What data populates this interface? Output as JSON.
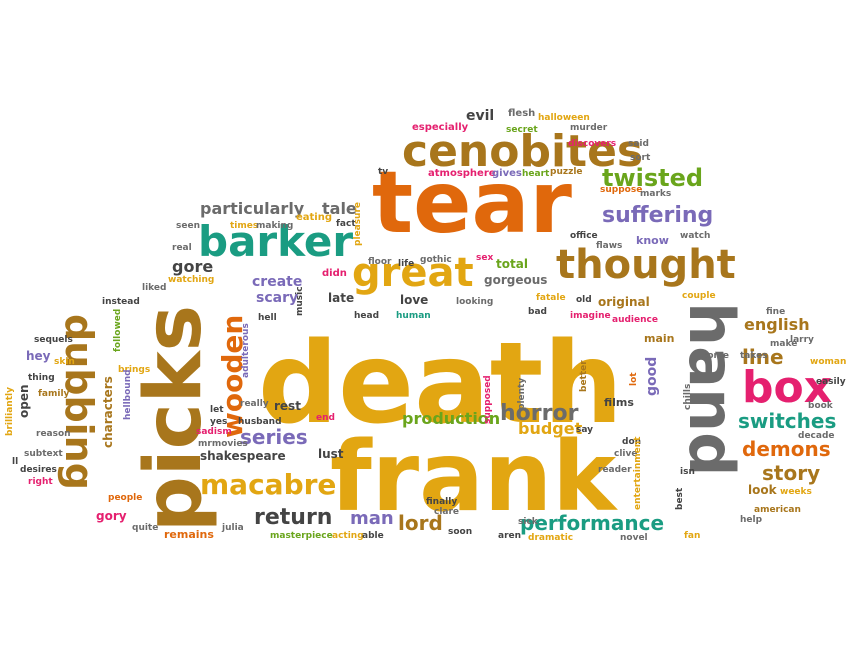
{
  "palette": {
    "gold": "#e2a612",
    "brown": "#a8761c",
    "orange": "#e0680c",
    "teal": "#1a9c82",
    "green": "#6aa51c",
    "magenta": "#e5206f",
    "purple": "#7a6ab8",
    "gray": "#6b6b6b",
    "dark": "#444444",
    "blue": "#3a86b8"
  },
  "words": [
    "death",
    "frank",
    "tear",
    "picks",
    "hand",
    "cenobites",
    "barker",
    "great",
    "thought",
    "box",
    "dubbing",
    "wooden",
    "macabre",
    "twisted",
    "suffering",
    "horror",
    "switches",
    "demons",
    "story",
    "series",
    "return",
    "performance",
    "line",
    "english",
    "lord",
    "man",
    "production",
    "budget",
    "particularly",
    "gore",
    "tale",
    "create",
    "scary",
    "evil",
    "flesh",
    "halloween",
    "especially",
    "secret",
    "murder",
    "atmosphere",
    "gives",
    "heart",
    "puzzle",
    "said",
    "sort",
    "suppose",
    "marks",
    "tv",
    "seen",
    "times",
    "making",
    "eating",
    "fact",
    "pleasure",
    "office",
    "watch",
    "know",
    "flaws",
    "real",
    "didn",
    "watching",
    "liked",
    "music",
    "sex",
    "total",
    "gorgeous",
    "late",
    "love",
    "looking",
    "fatale",
    "old",
    "original",
    "couple",
    "instead",
    "hell",
    "sequels",
    "followed",
    "hey",
    "skin",
    "brings",
    "thing",
    "brilliantly",
    "open",
    "ll",
    "subtext",
    "desires",
    "reason",
    "right",
    "family",
    "characters",
    "people",
    "gory",
    "quite",
    "julia",
    "remains",
    "masterpiece",
    "acting",
    "able",
    "aren",
    "dramatic",
    "sick",
    "better",
    "soon",
    "clive",
    "clare",
    "finally",
    "say",
    "reader",
    "don",
    "films",
    "entertainment",
    "best",
    "isn",
    "chills",
    "look",
    "weeks",
    "american",
    "help",
    "fan",
    "novel",
    "decade",
    "book",
    "easily",
    "woman",
    "come",
    "takes",
    "make",
    "larry",
    "fine",
    "main",
    "audience",
    "imagine",
    "discovers",
    "good",
    "lot",
    "plenty",
    "supposed",
    "bad",
    "head",
    "human",
    "floor",
    "life",
    "gothic",
    "rest",
    "end",
    "husband",
    "really",
    "let",
    "yes",
    "sadism",
    "hellbound",
    "mrmovies",
    "adulterous",
    "lust",
    "shakespeare",
    "clive"
  ]
}
